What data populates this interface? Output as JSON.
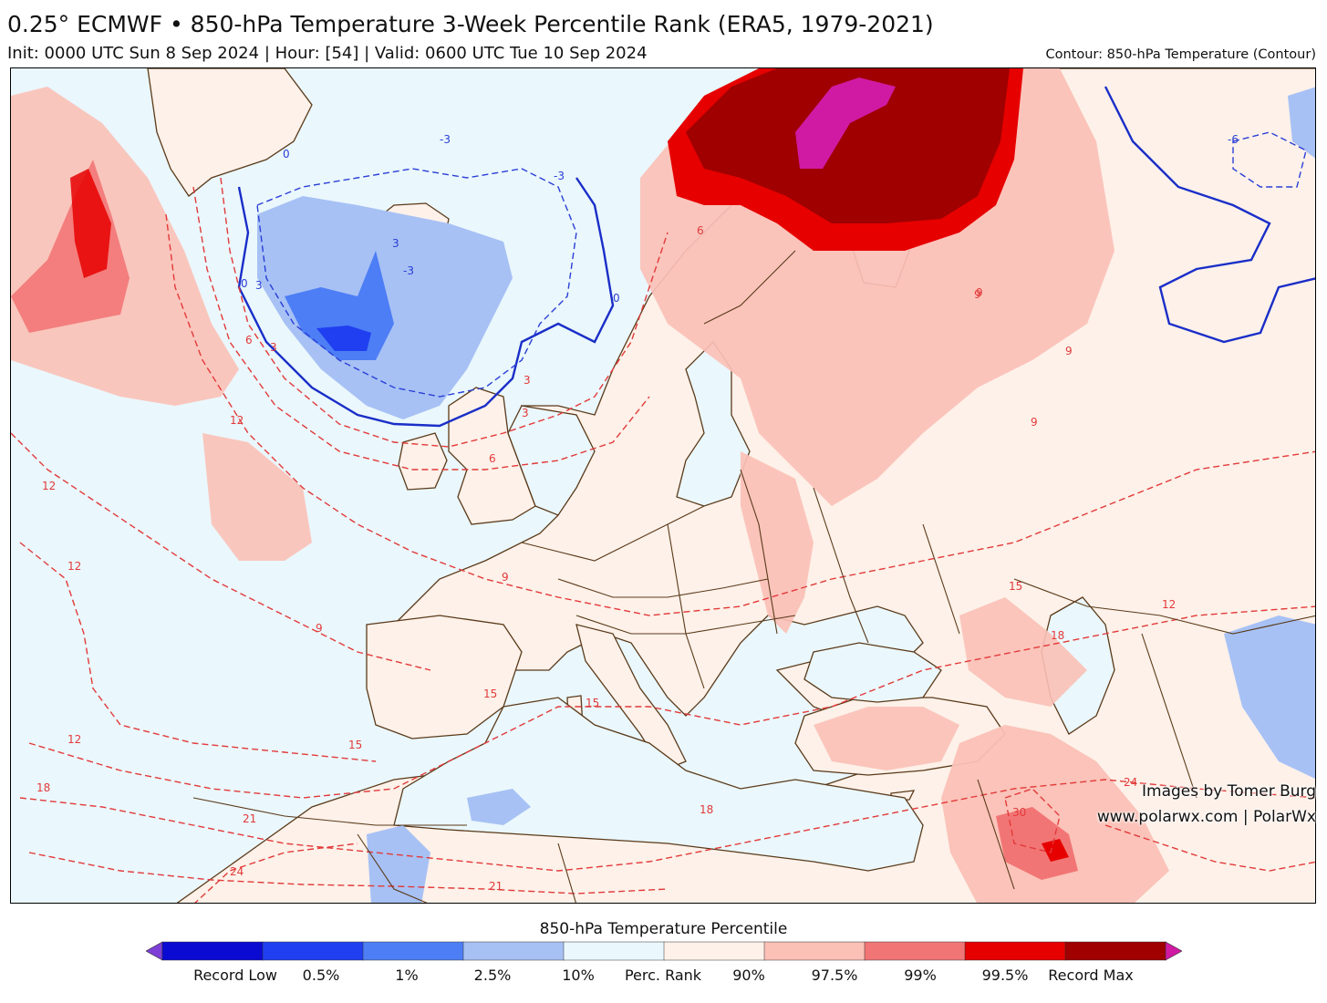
{
  "header": {
    "title": "0.25° ECMWF • 850-hPa Temperature 3-Week Percentile Rank (ERA5, 1979-2021)",
    "subtitle": "Init: 0000 UTC Sun 8 Sep 2024 | Hour: [54] | Valid: 0600 UTC Tue 10 Sep 2024",
    "contour_note": "Contour: 850-hPa Temperature (Contour)"
  },
  "credits": {
    "line1": "Images by Tomer Burg",
    "line2": "www.polarwx.com | PolarWx"
  },
  "colorbar": {
    "title": "850-hPa Temperature Percentile",
    "labels": [
      "Record Low",
      "0.5%",
      "1%",
      "2.5%",
      "10%",
      "Perc. Rank",
      "90%",
      "97.5%",
      "99%",
      "99.5%",
      "Record Max"
    ],
    "colors": [
      "#7d3fd6",
      "#0a0ad2",
      "#1f3ff0",
      "#4d7ef5",
      "#a7c1f5",
      "#eaf7fc",
      "#fdf1e9",
      "#fbc0b6",
      "#f27575",
      "#e60000",
      "#a00000",
      "#d11aa3"
    ]
  },
  "map": {
    "ocean_color": "#eaf7fc",
    "land_color": "#fdf1e9",
    "contour_labels": {
      "blue": [
        "0",
        "0",
        "0",
        "-3",
        "-3",
        "-3",
        "-6",
        "3",
        "3"
      ],
      "red": [
        "3",
        "3",
        "3",
        "6",
        "6",
        "6",
        "9",
        "9",
        "9",
        "9",
        "9",
        "9",
        "12",
        "12",
        "12",
        "12",
        "12",
        "15",
        "15",
        "15",
        "15",
        "18",
        "18",
        "18",
        "21",
        "21",
        "24",
        "24",
        "30"
      ]
    }
  }
}
